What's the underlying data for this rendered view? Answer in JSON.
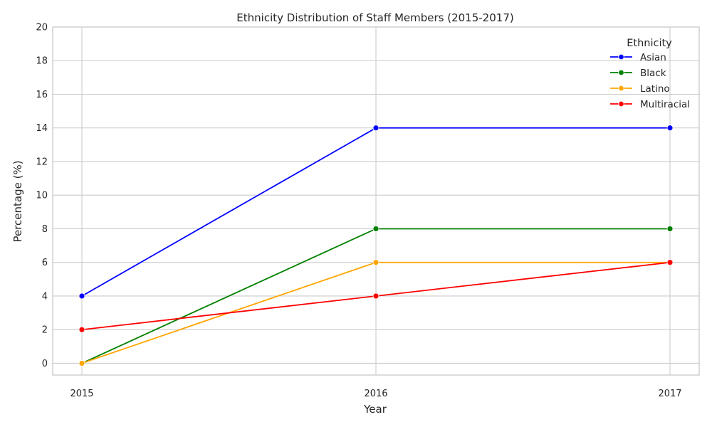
{
  "chart_data": {
    "type": "line",
    "title": "Ethnicity Distribution of Staff Members (2015-2017)",
    "xlabel": "Year",
    "ylabel": "Percentage (%)",
    "x": [
      "2015",
      "2016",
      "2017"
    ],
    "ylim": [
      -0.7,
      20
    ],
    "yticks": [
      0,
      2,
      4,
      6,
      8,
      10,
      12,
      14,
      16,
      18,
      20
    ],
    "grid": true,
    "legend": {
      "title": "Ethnicity",
      "placement": "top-right"
    },
    "series": [
      {
        "name": "Asian",
        "values": [
          4,
          14,
          14
        ],
        "color": "#0000ff"
      },
      {
        "name": "Black",
        "values": [
          0,
          8,
          8
        ],
        "color": "#008000"
      },
      {
        "name": "Latino",
        "values": [
          0,
          6,
          6
        ],
        "color": "#ffa500"
      },
      {
        "name": "Multiracial",
        "values": [
          2,
          4,
          6
        ],
        "color": "#ff0000"
      }
    ]
  }
}
